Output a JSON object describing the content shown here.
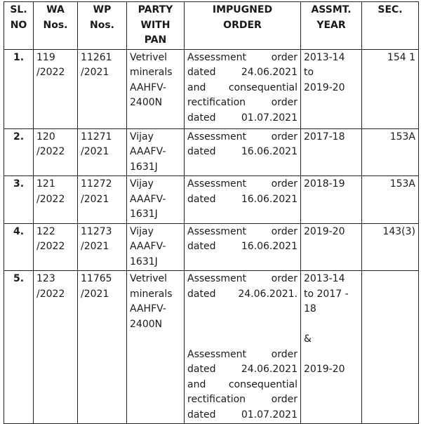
{
  "headers": [
    "SL.\nNO",
    "WA\nNos.",
    "WP\nNos.",
    "PARTY\nWITH\nPAN",
    "IMPUGNED\nORDER",
    "ASSMT.\nYEAR",
    "SEC."
  ],
  "rows": [
    {
      "sl": "1.",
      "wa": "119\n/2022",
      "wp": "11261\n/2021",
      "party": "Vetrivel\nminerals\nAAHFV-\n2400N",
      "order": [
        "Assessment order",
        "dated 24.06.2021",
        "and consequential",
        "rectification order",
        "dated 01.07.2021"
      ],
      "year": "2013-14\nto\n2019-20",
      "sec": "154 1"
    },
    {
      "sl": "2.",
      "wa": "120\n/2022",
      "wp": "11271\n/2021",
      "party": "Vijay\nAAAFV-\n1631J",
      "order": [
        "Assessment order",
        "dated 16.06.2021"
      ],
      "year": "2017-18",
      "sec": "153A"
    },
    {
      "sl": "3.",
      "wa": "121\n/2022",
      "wp": "11272\n/2021",
      "party": "Vijay\nAAAFV-\n1631J",
      "order": [
        "Assessment order",
        "dated 16.06.2021"
      ],
      "year": "2018-19",
      "sec": "153A"
    },
    {
      "sl": "4.",
      "wa": "122\n/2022",
      "wp": "11273\n/2021",
      "party": "Vijay\nAAAFV-\n1631J",
      "order": [
        "Assessment order",
        "dated 16.06.2021"
      ],
      "year": "2019-20",
      "sec": "143(3)"
    },
    {
      "sl": "5.",
      "wa": "123\n/2022",
      "wp": "11765\n/2021",
      "party": "Vetrivel\nminerals\nAAHFV-\n2400N",
      "order": [
        "Assessment order",
        "dated 24.06.2021.",
        "",
        "",
        "",
        "Assessment order",
        "dated 24.06.2021",
        "and consequential",
        "rectification order",
        "dated 01.07.2021"
      ],
      "year": "2013-14\nto 2017 -\n18\n\n&\n\n2019-20",
      "sec": ""
    }
  ]
}
